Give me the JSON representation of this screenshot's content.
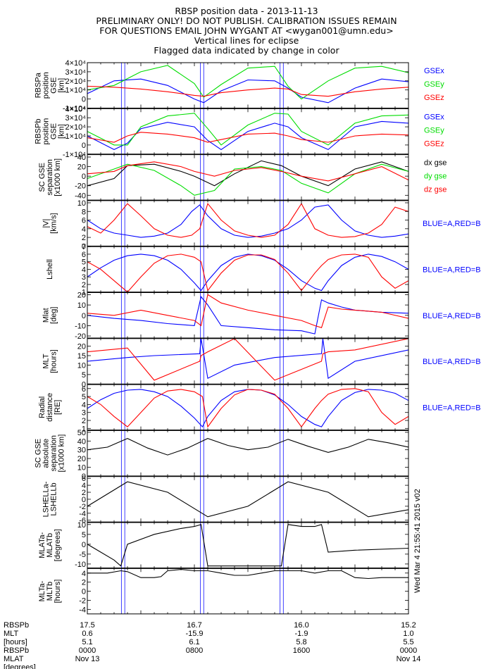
{
  "titles": [
    "RBSP position data - 2013-11-13",
    "PRELIMINARY ONLY! DO NOT PUBLISH. CALIBRATION ISSUES REMAIN",
    "FOR QUESTIONS EMAIL JOHN WYGANT AT <wygan001@umn.edu>",
    "Vertical lines for eclipse",
    "Flagged data indicated by change in color"
  ],
  "stamp": "Wed Mar  4 21:55:41 2015 v02",
  "colors": {
    "blue": "#0000ff",
    "green": "#00dd00",
    "red": "#ff0000",
    "black": "#000000",
    "eclipse": "#4040ff"
  },
  "eclipse_hours": [
    2.55,
    2.8,
    8.45,
    8.7,
    14.4,
    14.65
  ],
  "footer": {
    "rows": [
      "RBSPb",
      "MLT",
      "[hours]",
      "RBSPb",
      "MLAT",
      "[degrees]"
    ],
    "columns": [
      [
        "17.5",
        "0.6",
        "5.1",
        "0000",
        "Nov 13"
      ],
      [
        "16.7",
        "-15.9",
        "6.1",
        "0800",
        ""
      ],
      [
        "16.0",
        "-1.9",
        "5.8",
        "1600",
        ""
      ],
      [
        "15.2",
        "1.0",
        "5.5",
        "0000",
        "Nov 14"
      ]
    ]
  },
  "chart_data": [
    {
      "type": "line",
      "ylabel": [
        "RBSPa",
        "position",
        "GSE",
        "[km]"
      ],
      "ylim": [
        -10000,
        40000
      ],
      "yticks": [
        -10000,
        0,
        10000,
        20000,
        30000,
        40000
      ],
      "yticklabels": [
        "-1×10⁴",
        "0",
        "1×10⁴",
        "2×10⁴",
        "3×10⁴",
        "4×10⁴"
      ],
      "x": [
        0,
        2,
        4,
        6,
        8,
        8.7,
        10,
        12,
        14,
        15,
        16,
        18,
        20,
        22,
        24
      ],
      "series": [
        {
          "name": "GSEx",
          "color": "#0000ff",
          "values": [
            6000,
            20000,
            22000,
            15000,
            0,
            -4000,
            9000,
            21000,
            20000,
            12000,
            2000,
            -4000,
            12000,
            22000,
            19000
          ]
        },
        {
          "name": "GSEy",
          "color": "#00dd00",
          "values": [
            10000,
            15000,
            30000,
            37000,
            17000,
            2000,
            16000,
            34000,
            36000,
            14000,
            0,
            20000,
            34000,
            36000,
            29000
          ]
        },
        {
          "name": "GSEz",
          "color": "#ff0000",
          "values": [
            14000,
            13000,
            11000,
            8000,
            4000,
            3000,
            7000,
            10000,
            12000,
            11000,
            5000,
            3000,
            8000,
            11000,
            13000
          ]
        }
      ]
    },
    {
      "type": "line",
      "ylabel": [
        "RBSPb",
        "position",
        "GSE",
        "[km]"
      ],
      "ylim": [
        -10000,
        40000
      ],
      "yticks": [
        -10000,
        0,
        10000,
        20000,
        30000,
        40000
      ],
      "yticklabels": [
        "-1×10⁴",
        "0",
        "1×10⁴",
        "2×10⁴",
        "3×10⁴",
        "4×10⁴"
      ],
      "x": [
        0,
        2,
        3,
        4,
        6,
        8,
        9,
        10,
        12,
        14,
        15,
        16,
        18,
        20,
        22,
        24
      ],
      "series": [
        {
          "name": "GSEx",
          "color": "#0000ff",
          "values": [
            10000,
            -5000,
            2000,
            18000,
            25000,
            20000,
            5000,
            -5000,
            15000,
            24000,
            20000,
            8000,
            -5000,
            20000,
            26000,
            24000
          ]
        },
        {
          "name": "GSEy",
          "color": "#00dd00",
          "values": [
            15000,
            0,
            0,
            20000,
            32000,
            35000,
            18000,
            0,
            22000,
            35000,
            34000,
            15000,
            0,
            24000,
            32000,
            33000
          ]
        },
        {
          "name": "GSEz",
          "color": "#ff0000",
          "values": [
            8000,
            3000,
            10000,
            14000,
            12000,
            8000,
            3000,
            6000,
            12000,
            13000,
            10000,
            6000,
            3000,
            10000,
            12000,
            11000
          ]
        }
      ]
    },
    {
      "type": "line",
      "ylabel": [
        "SC GSE",
        "separation",
        "[x1000 km]"
      ],
      "ylim": [
        -50,
        45
      ],
      "yticks": [
        -40,
        -20,
        0,
        20,
        40
      ],
      "yticklabels": [
        "-40",
        "-20",
        "0",
        "20",
        "40"
      ],
      "x": [
        0,
        2,
        3,
        5,
        7,
        8,
        9.5,
        11,
        13,
        14.5,
        16,
        18,
        20,
        22,
        24
      ],
      "series": [
        {
          "name": "dx gse",
          "color": "#000000",
          "values": [
            -20,
            -5,
            22,
            25,
            10,
            0,
            -20,
            5,
            32,
            22,
            0,
            -20,
            15,
            30,
            10
          ]
        },
        {
          "name": "dy gse",
          "color": "#00dd00",
          "values": [
            -5,
            15,
            25,
            12,
            -20,
            -40,
            -30,
            15,
            20,
            12,
            -15,
            -35,
            5,
            25,
            10
          ]
        },
        {
          "name": "dz gse",
          "color": "#ff0000",
          "values": [
            5,
            10,
            22,
            30,
            20,
            10,
            0,
            12,
            18,
            10,
            0,
            -10,
            5,
            20,
            -8
          ]
        }
      ]
    },
    {
      "type": "line",
      "ylabel": [
        "|V|",
        "[km/s]"
      ],
      "ylim": [
        0,
        10.5
      ],
      "yticks": [
        0,
        2,
        4,
        6,
        8,
        10
      ],
      "yticklabels": [
        "0",
        "2",
        "4",
        "6",
        "8",
        "10"
      ],
      "legend": "BLUE=A,RED=B",
      "x": [
        0,
        1,
        2,
        3,
        4,
        5,
        6,
        7,
        7.8,
        8.4,
        9,
        10,
        11,
        12,
        13,
        14,
        15,
        16,
        17,
        18,
        19,
        20,
        21,
        22,
        23,
        24
      ],
      "series": [
        {
          "name": "A",
          "color": "#0000ff",
          "values": [
            6,
            4,
            3,
            2.5,
            2,
            2.3,
            3,
            5,
            8,
            9.5,
            7,
            4,
            2.5,
            2,
            2.3,
            3,
            4,
            6,
            9,
            9.5,
            6,
            3.5,
            2.5,
            2,
            2.3,
            2.8
          ]
        },
        {
          "name": "B",
          "color": "#ff0000",
          "values": [
            4.5,
            3,
            6,
            9.8,
            7,
            4,
            2.5,
            2,
            2.5,
            4,
            9.8,
            6,
            3.5,
            2.5,
            2,
            2.5,
            5,
            9.8,
            4,
            2.5,
            2,
            2.2,
            3,
            5,
            9,
            8
          ]
        }
      ]
    },
    {
      "type": "line",
      "ylabel": [
        "Lshell"
      ],
      "ylim": [
        1,
        7
      ],
      "yticks": [
        1,
        2,
        3,
        4,
        5,
        6,
        7
      ],
      "yticklabels": [
        "1",
        "2",
        "3",
        "4",
        "5",
        "6",
        "7"
      ],
      "legend": "BLUE=A,RED=B",
      "x": [
        0,
        1,
        2,
        3,
        4,
        5,
        6,
        7,
        8,
        8.5,
        9,
        10,
        11,
        12,
        13,
        14,
        15,
        16,
        17,
        17.5,
        18,
        19,
        20,
        21,
        22,
        23,
        24
      ],
      "series": [
        {
          "name": "A",
          "color": "#0000ff",
          "values": [
            3,
            4.2,
            5.2,
            5.8,
            6,
            5.8,
            5.2,
            4,
            2.2,
            1.2,
            2.5,
            4.5,
            5.6,
            6,
            5.8,
            5.2,
            4,
            2.5,
            1.5,
            1.2,
            2.5,
            4.5,
            5.6,
            6,
            5.7,
            5,
            4
          ]
        },
        {
          "name": "B",
          "color": "#ff0000",
          "values": [
            5,
            4,
            2.5,
            1,
            3,
            4.8,
            5.8,
            6,
            5.6,
            5,
            1.2,
            3.5,
            5.2,
            5.9,
            5.9,
            5.3,
            3.5,
            1.2,
            3.5,
            4.5,
            5.3,
            5.9,
            6,
            5.6,
            3,
            1.5,
            2.5
          ]
        }
      ]
    },
    {
      "type": "line",
      "ylabel": [
        "Mlat",
        "[deg]"
      ],
      "ylim": [
        -22,
        22
      ],
      "yticks": [
        -20,
        -10,
        0,
        10,
        20
      ],
      "yticklabels": [
        "-20",
        "-10",
        "0",
        "10",
        "20"
      ],
      "legend": "BLUE=A,RED=B",
      "x": [
        0,
        2,
        4,
        6,
        8,
        8.5,
        9,
        10,
        12,
        14,
        16,
        17,
        17.5,
        18,
        19,
        20,
        22,
        24
      ],
      "series": [
        {
          "name": "A",
          "color": "#0000ff",
          "values": [
            0,
            -3,
            -5,
            -8,
            -10,
            18,
            10,
            -10,
            -12,
            -14,
            -15,
            -18,
            15,
            12,
            8,
            5,
            3,
            2
          ]
        },
        {
          "name": "B",
          "color": "#ff0000",
          "values": [
            2,
            0,
            5,
            0,
            -5,
            -10,
            20,
            12,
            5,
            0,
            -5,
            -10,
            -12,
            8,
            6,
            5,
            3,
            -3
          ]
        }
      ]
    },
    {
      "type": "line",
      "ylabel": [
        "MLT",
        "[hours]"
      ],
      "ylim": [
        0,
        24
      ],
      "yticks": [
        0,
        5,
        10,
        15,
        20
      ],
      "yticklabels": [
        "0",
        "5",
        "10",
        "15",
        "20"
      ],
      "legend": "BLUE=A,RED=B",
      "x": [
        0,
        3,
        5,
        8.4,
        8.5,
        9,
        11,
        14,
        17.5,
        17.6,
        18,
        20,
        24
      ],
      "series": [
        {
          "name": "A",
          "color": "#0000ff",
          "values": [
            12,
            14,
            15,
            16,
            24,
            3,
            10,
            14,
            16,
            24,
            3,
            12,
            18
          ]
        },
        {
          "name": "B",
          "color": "#ff0000",
          "values": [
            17,
            19,
            2,
            12,
            15,
            17,
            24,
            2,
            12,
            16,
            17,
            18,
            24
          ]
        }
      ]
    },
    {
      "type": "line",
      "ylabel": [
        "Radial",
        "distance",
        "[RE]"
      ],
      "ylim": [
        0.8,
        6.5
      ],
      "yticks": [
        1,
        2,
        3,
        4,
        5,
        6
      ],
      "yticklabels": [
        "1",
        "2",
        "3",
        "4",
        "5",
        "6"
      ],
      "legend": "BLUE=A,RED=B",
      "x": [
        0,
        1,
        2,
        3,
        4,
        5,
        6,
        7,
        8,
        8.6,
        9,
        10,
        11,
        12,
        13,
        14,
        15,
        16,
        17,
        17.5,
        18,
        19,
        20,
        21,
        22,
        23,
        24
      ],
      "series": [
        {
          "name": "A",
          "color": "#0000ff",
          "values": [
            3.5,
            4.6,
            5.4,
            5.8,
            5.9,
            5.6,
            5,
            3.8,
            2.3,
            1.2,
            2.5,
            4.5,
            5.6,
            5.9,
            5.8,
            5.2,
            4,
            2.5,
            1.5,
            1.2,
            2.5,
            4.5,
            5.5,
            5.9,
            5.8,
            5.4,
            4.5
          ]
        },
        {
          "name": "B",
          "color": "#ff0000",
          "values": [
            5,
            4,
            2.5,
            1.2,
            3,
            4.8,
            5.7,
            5.9,
            5.6,
            5,
            1.2,
            3.5,
            5.2,
            5.9,
            5.8,
            5.3,
            3.5,
            1.2,
            3.5,
            4.5,
            5.3,
            5.9,
            6,
            5.6,
            3,
            1.5,
            2.5
          ]
        }
      ]
    },
    {
      "type": "line",
      "ylabel": [
        "SC GSE",
        "absolute",
        "separation",
        "[x1000 km]"
      ],
      "ylim": [
        0,
        52
      ],
      "yticks": [
        0,
        10,
        20,
        30,
        40,
        50
      ],
      "yticklabels": [
        "0",
        "10",
        "20",
        "30",
        "40",
        "50"
      ],
      "x": [
        0,
        1.5,
        3,
        4.5,
        6,
        7.5,
        9,
        10.5,
        12,
        13.5,
        15,
        16.5,
        18,
        19.5,
        21,
        22.5,
        24
      ],
      "series": [
        {
          "name": "",
          "color": "#000000",
          "values": [
            30,
            33,
            43,
            32,
            24,
            32,
            43,
            35,
            30,
            33,
            42,
            34,
            27,
            33,
            42,
            38,
            33
          ]
        }
      ]
    },
    {
      "type": "line",
      "ylabel": [
        "LSHELLa-",
        "LSHELLb"
      ],
      "ylim": [
        -6.5,
        6.5
      ],
      "yticks": [
        -6,
        -4,
        -2,
        0,
        2,
        4,
        6
      ],
      "yticklabels": [
        "-6",
        "-4",
        "-2",
        "0",
        "2",
        "4",
        "6"
      ],
      "x": [
        0,
        3,
        6,
        9,
        12,
        15,
        18,
        21,
        24
      ],
      "series": [
        {
          "name": "",
          "color": "#000000",
          "values": [
            -2,
            5,
            2,
            -5,
            -2,
            5,
            2,
            -5,
            -3
          ]
        }
      ]
    },
    {
      "type": "line",
      "ylabel": [
        "MLATa-",
        "MLATb",
        "[degrees]"
      ],
      "ylim": [
        -12,
        11
      ],
      "yticks": [
        -10,
        -5,
        0,
        5,
        10
      ],
      "yticklabels": [
        "-10",
        "-5",
        "0",
        "5",
        "10"
      ],
      "x": [
        0,
        2,
        2.5,
        3,
        5,
        7,
        8,
        8.5,
        9,
        12,
        14.5,
        15,
        16,
        17,
        17.5,
        18,
        20,
        24
      ],
      "series": [
        {
          "name": "",
          "color": "#000000",
          "values": [
            0,
            -8,
            -11,
            0,
            5,
            8,
            9,
            10,
            -11,
            -11,
            -11,
            10,
            9,
            9,
            10,
            -4,
            -3,
            -2
          ]
        }
      ]
    },
    {
      "type": "line",
      "ylabel": [
        "MLTa-",
        "MLTb",
        "[hours]"
      ],
      "ylim": [
        -5,
        5
      ],
      "yticks": [
        -4,
        -2,
        0,
        2,
        4
      ],
      "yticklabels": [
        "-4",
        "-2",
        "0",
        "2",
        "4"
      ],
      "x": [
        0,
        1.5,
        2.5,
        3,
        4,
        5,
        5.5,
        6,
        7,
        8,
        9,
        10,
        11,
        12,
        13,
        14,
        15,
        16,
        17,
        18,
        19,
        20,
        21,
        22,
        23,
        24
      ],
      "series": [
        {
          "name": "",
          "color": "#000000",
          "values": [
            4,
            4,
            4.5,
            4.3,
            3,
            3,
            3.2,
            4.5,
            4.8,
            4.5,
            4.5,
            4,
            3.5,
            3.5,
            4,
            4.5,
            4.5,
            4.5,
            4,
            4.5,
            4.5,
            3,
            2.8,
            3,
            3,
            3
          ]
        }
      ]
    }
  ]
}
